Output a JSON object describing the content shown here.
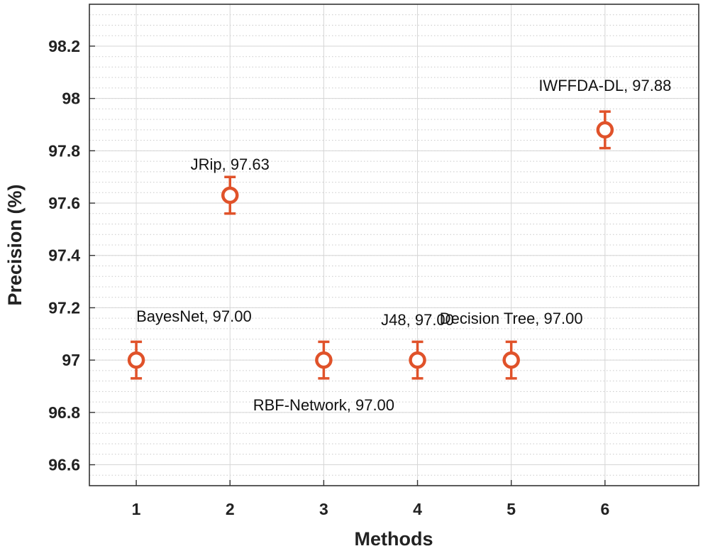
{
  "chart_data": {
    "type": "scatter",
    "title": "",
    "xlabel": "Methods",
    "ylabel": "Precision (%)",
    "xlim": [
      0.5,
      7.0
    ],
    "ylim": [
      96.52,
      98.36
    ],
    "x_ticks": [
      "1",
      "2",
      "3",
      "4",
      "5",
      "6"
    ],
    "y_ticks": [
      "96.6",
      "96.8",
      "97",
      "97.2",
      "97.4",
      "97.6",
      "97.8",
      "98",
      "98.2"
    ],
    "grid": true,
    "marker_color": "#e0522a",
    "series": [
      {
        "name": "Precision",
        "points": [
          {
            "x": 1,
            "y": 97.0,
            "err": 0.07,
            "label": "BayesNet, 97.00"
          },
          {
            "x": 2,
            "y": 97.63,
            "err": 0.07,
            "label": "JRip, 97.63"
          },
          {
            "x": 3,
            "y": 97.0,
            "err": 0.07,
            "label": "RBF-Network, 97.00"
          },
          {
            "x": 4,
            "y": 97.0,
            "err": 0.07,
            "label": "J48, 97.00"
          },
          {
            "x": 5,
            "y": 97.0,
            "err": 0.07,
            "label": "Decision Tree, 97.00"
          },
          {
            "x": 6,
            "y": 97.88,
            "err": 0.07,
            "label": "IWFFDA-DL, 97.88"
          }
        ]
      }
    ]
  }
}
